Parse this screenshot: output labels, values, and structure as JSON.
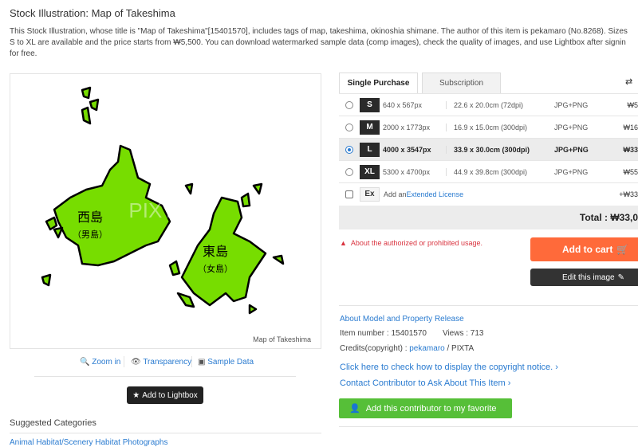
{
  "page": {
    "title": "Stock Illustration: Map of Takeshima",
    "description": "This Stock Illustration, whose title is \"Map of Takeshima\"[15401570], includes tags of map, takeshima, okinoshia shimane. The author of this item is pekamaro (No.8268). Sizes\nS to XL are available and the price starts from ₩5,500. You can download watermarked sample data (comp images), check the quality of images, and use Lightbox after signin\nfor free."
  },
  "image": {
    "caption": "Map of Takeshima",
    "watermark": "PIXTA",
    "west_island": "西島",
    "west_sub": "（男島）",
    "east_island": "東島",
    "east_sub": "（女島）",
    "land_color": "#77dd00"
  },
  "image_tools": {
    "zoom": "Zoom in",
    "transparency": "Transparency",
    "sample": "Sample Data"
  },
  "lightbox": "Add to Lightbox",
  "suggested": {
    "heading": "Suggested Categories",
    "links": "Animal Habitat/Scenery Habitat  Photographs"
  },
  "purchase": {
    "tabs": [
      "Single Purchase",
      "Subscription"
    ],
    "rows": [
      {
        "size": "S",
        "px": "640 x 567px",
        "cm": "22.6 x 20.0cm (72dpi)",
        "format": "JPG+PNG",
        "price": "₩5",
        "selected": false
      },
      {
        "size": "M",
        "px": "2000 x 1773px",
        "cm": "16.9 x 15.0cm (300dpi)",
        "format": "JPG+PNG",
        "price": "₩16",
        "selected": false
      },
      {
        "size": "L",
        "px": "4000 x 3547px",
        "cm": "33.9 x 30.0cm (300dpi)",
        "format": "JPG+PNG",
        "price": "₩33",
        "selected": true
      },
      {
        "size": "XL",
        "px": "5300 x 4700px",
        "cm": "44.9 x 39.8cm (300dpi)",
        "format": "JPG+PNG",
        "price": "₩55",
        "selected": false
      }
    ],
    "extended": {
      "badge": "Ex",
      "prefix": "Add an ",
      "link": "Extended License",
      "price": "+₩33",
      "checked": false
    },
    "total": "Total : ₩33,0",
    "warning": "About the authorized or prohibited usage.",
    "add_to_cart": "Add to cart",
    "edit": "Edit this image"
  },
  "info": {
    "release": "About Model and Property Release",
    "item_number": "Item number : 15401570",
    "views": "Views : 713",
    "credits_prefix": "Credits(copyright) : ",
    "author": "pekamaro",
    "credits_suffix": " / PIXTA",
    "copyright_link": "Click here to check how to display the copyright notice. ›",
    "contact_link": "Contact Contributor to Ask About This Item ›",
    "favorite": "Add this contributor to my favorite"
  }
}
